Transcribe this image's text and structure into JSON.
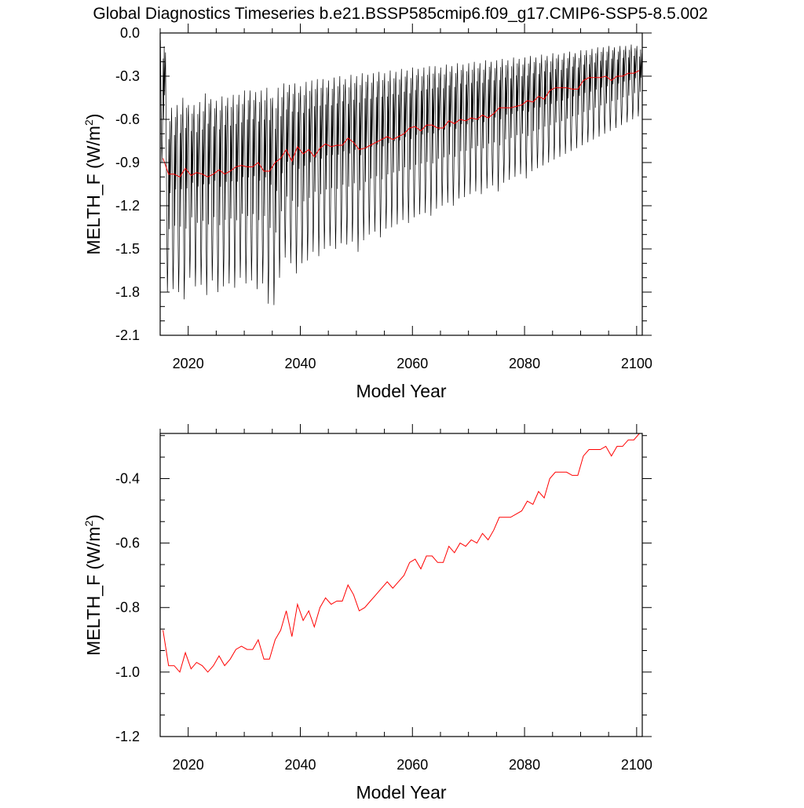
{
  "figure": {
    "title": "Global Diagnostics Timeseries b.e21.BSSP585cmip6.f09_g17.CMIP6-SSP5-8.5.002"
  },
  "chart_data": [
    {
      "type": "line",
      "xlabel": "Model Year",
      "ylabel_main": "MELTH_F (W/m",
      "ylabel_sup": "2",
      "ylabel_close": ")",
      "xlim": [
        2015,
        2101
      ],
      "ylim": [
        -2.1,
        0.0
      ],
      "xticks": [
        2020,
        2040,
        2060,
        2080,
        2100
      ],
      "xtick_labels": [
        "2020",
        "2040",
        "2060",
        "2080",
        "2100"
      ],
      "yticks": [
        0.0,
        -0.3,
        -0.6,
        -0.9,
        -1.2,
        -1.5,
        -1.8,
        -2.1
      ],
      "ytick_labels": [
        "0.0",
        "-0.3",
        "-0.6",
        "-0.9",
        "-1.2",
        "-1.5",
        "-1.8",
        "-2.1"
      ],
      "grid": false,
      "series": [
        {
          "kind": "monthly",
          "color": "#000000",
          "start_year": 2015,
          "months_per_year": 12,
          "annual_max": [
            -0.05,
            -0.55,
            -0.52,
            -0.5,
            -0.45,
            -0.5,
            -0.5,
            -0.48,
            -0.42,
            -0.46,
            -0.47,
            -0.44,
            -0.45,
            -0.43,
            -0.43,
            -0.4,
            -0.4,
            -0.41,
            -0.4,
            -0.38,
            -0.45,
            -0.38,
            -0.35,
            -0.36,
            -0.35,
            -0.37,
            -0.34,
            -0.33,
            -0.32,
            -0.32,
            -0.33,
            -0.31,
            -0.3,
            -0.32,
            -0.29,
            -0.3,
            -0.28,
            -0.29,
            -0.28,
            -0.27,
            -0.28,
            -0.26,
            -0.27,
            -0.25,
            -0.26,
            -0.24,
            -0.25,
            -0.24,
            -0.23,
            -0.23,
            -0.24,
            -0.22,
            -0.23,
            -0.21,
            -0.22,
            -0.21,
            -0.2,
            -0.21,
            -0.19,
            -0.2,
            -0.19,
            -0.18,
            -0.19,
            -0.17,
            -0.18,
            -0.17,
            -0.16,
            -0.17,
            -0.15,
            -0.16,
            -0.14,
            -0.15,
            -0.14,
            -0.13,
            -0.14,
            -0.12,
            -0.12,
            -0.11,
            -0.1,
            -0.1,
            -0.09,
            -0.1,
            -0.09,
            -0.09,
            -0.08,
            -0.09
          ],
          "annual_min": [
            -0.9,
            -1.8,
            -1.78,
            -1.8,
            -1.85,
            -1.7,
            -1.76,
            -1.75,
            -1.82,
            -1.72,
            -1.8,
            -1.76,
            -1.74,
            -1.77,
            -1.7,
            -1.74,
            -1.72,
            -1.78,
            -1.74,
            -1.88,
            -1.89,
            -1.7,
            -1.56,
            -1.6,
            -1.67,
            -1.6,
            -1.58,
            -1.52,
            -1.55,
            -1.5,
            -1.48,
            -1.5,
            -1.46,
            -1.47,
            -1.45,
            -1.52,
            -1.44,
            -1.4,
            -1.38,
            -1.42,
            -1.36,
            -1.35,
            -1.33,
            -1.3,
            -1.32,
            -1.28,
            -1.26,
            -1.25,
            -1.27,
            -1.22,
            -1.2,
            -1.18,
            -1.2,
            -1.15,
            -1.14,
            -1.12,
            -1.1,
            -1.12,
            -1.08,
            -1.06,
            -1.1,
            -1.04,
            -1.02,
            -1.0,
            -0.98,
            -1.01,
            -0.96,
            -0.94,
            -0.92,
            -0.9,
            -0.88,
            -0.86,
            -0.84,
            -0.82,
            -0.8,
            -0.78,
            -0.76,
            -0.74,
            -0.72,
            -0.7,
            -0.68,
            -0.66,
            -0.64,
            -0.62,
            -0.6,
            -0.58
          ]
        },
        {
          "kind": "annual",
          "color": "#ff0000",
          "x": [
            2015.5,
            2016.5,
            2017.5,
            2018.5,
            2019.5,
            2020.5,
            2021.5,
            2022.5,
            2023.5,
            2024.5,
            2025.5,
            2026.5,
            2027.5,
            2028.5,
            2029.5,
            2030.5,
            2031.5,
            2032.5,
            2033.5,
            2034.5,
            2035.5,
            2036.5,
            2037.5,
            2038.5,
            2039.5,
            2040.5,
            2041.5,
            2042.5,
            2043.5,
            2044.5,
            2045.5,
            2046.5,
            2047.5,
            2048.5,
            2049.5,
            2050.5,
            2051.5,
            2052.5,
            2053.5,
            2054.5,
            2055.5,
            2056.5,
            2057.5,
            2058.5,
            2059.5,
            2060.5,
            2061.5,
            2062.5,
            2063.5,
            2064.5,
            2065.5,
            2066.5,
            2067.5,
            2068.5,
            2069.5,
            2070.5,
            2071.5,
            2072.5,
            2073.5,
            2074.5,
            2075.5,
            2076.5,
            2077.5,
            2078.5,
            2079.5,
            2080.5,
            2081.5,
            2082.5,
            2083.5,
            2084.5,
            2085.5,
            2086.5,
            2087.5,
            2088.5,
            2089.5,
            2090.5,
            2091.5,
            2092.5,
            2093.5,
            2094.5,
            2095.5,
            2096.5,
            2097.5,
            2098.5,
            2099.5,
            2100.5
          ],
          "values": [
            -0.87,
            -0.98,
            -0.98,
            -1.0,
            -0.94,
            -0.99,
            -0.97,
            -0.98,
            -1.0,
            -0.98,
            -0.95,
            -0.98,
            -0.96,
            -0.93,
            -0.92,
            -0.93,
            -0.93,
            -0.9,
            -0.96,
            -0.96,
            -0.9,
            -0.87,
            -0.81,
            -0.89,
            -0.79,
            -0.84,
            -0.81,
            -0.86,
            -0.8,
            -0.77,
            -0.79,
            -0.78,
            -0.78,
            -0.73,
            -0.76,
            -0.81,
            -0.8,
            -0.78,
            -0.76,
            -0.74,
            -0.72,
            -0.74,
            -0.72,
            -0.7,
            -0.66,
            -0.65,
            -0.68,
            -0.64,
            -0.64,
            -0.66,
            -0.66,
            -0.61,
            -0.63,
            -0.6,
            -0.61,
            -0.59,
            -0.6,
            -0.57,
            -0.59,
            -0.56,
            -0.52,
            -0.52,
            -0.52,
            -0.51,
            -0.5,
            -0.47,
            -0.48,
            -0.44,
            -0.46,
            -0.4,
            -0.38,
            -0.38,
            -0.38,
            -0.39,
            -0.39,
            -0.33,
            -0.31,
            -0.31,
            -0.31,
            -0.3,
            -0.33,
            -0.3,
            -0.3,
            -0.28,
            -0.28,
            -0.26
          ]
        }
      ]
    },
    {
      "type": "line",
      "xlabel": "Model Year",
      "ylabel_main": "MELTH_F (W/m",
      "ylabel_sup": "2",
      "ylabel_close": ")",
      "xlim": [
        2015,
        2101
      ],
      "ylim": [
        -1.2,
        -0.26
      ],
      "xticks": [
        2020,
        2040,
        2060,
        2080,
        2100
      ],
      "xtick_labels": [
        "2020",
        "2040",
        "2060",
        "2080",
        "2100"
      ],
      "yticks": [
        -0.4,
        -0.6,
        -0.8,
        -1.0,
        -1.2
      ],
      "ytick_labels": [
        "-0.4",
        "-0.6",
        "-0.8",
        "-1.0",
        "-1.2"
      ],
      "grid": false,
      "series": [
        {
          "kind": "annual",
          "color": "#ff0000",
          "x": [
            2015.5,
            2016.5,
            2017.5,
            2018.5,
            2019.5,
            2020.5,
            2021.5,
            2022.5,
            2023.5,
            2024.5,
            2025.5,
            2026.5,
            2027.5,
            2028.5,
            2029.5,
            2030.5,
            2031.5,
            2032.5,
            2033.5,
            2034.5,
            2035.5,
            2036.5,
            2037.5,
            2038.5,
            2039.5,
            2040.5,
            2041.5,
            2042.5,
            2043.5,
            2044.5,
            2045.5,
            2046.5,
            2047.5,
            2048.5,
            2049.5,
            2050.5,
            2051.5,
            2052.5,
            2053.5,
            2054.5,
            2055.5,
            2056.5,
            2057.5,
            2058.5,
            2059.5,
            2060.5,
            2061.5,
            2062.5,
            2063.5,
            2064.5,
            2065.5,
            2066.5,
            2067.5,
            2068.5,
            2069.5,
            2070.5,
            2071.5,
            2072.5,
            2073.5,
            2074.5,
            2075.5,
            2076.5,
            2077.5,
            2078.5,
            2079.5,
            2080.5,
            2081.5,
            2082.5,
            2083.5,
            2084.5,
            2085.5,
            2086.5,
            2087.5,
            2088.5,
            2089.5,
            2090.5,
            2091.5,
            2092.5,
            2093.5,
            2094.5,
            2095.5,
            2096.5,
            2097.5,
            2098.5,
            2099.5,
            2100.5
          ],
          "values": [
            -0.87,
            -0.98,
            -0.98,
            -1.0,
            -0.94,
            -0.99,
            -0.97,
            -0.98,
            -1.0,
            -0.98,
            -0.95,
            -0.98,
            -0.96,
            -0.93,
            -0.92,
            -0.93,
            -0.93,
            -0.9,
            -0.96,
            -0.96,
            -0.9,
            -0.87,
            -0.81,
            -0.89,
            -0.79,
            -0.84,
            -0.81,
            -0.86,
            -0.8,
            -0.77,
            -0.79,
            -0.78,
            -0.78,
            -0.73,
            -0.76,
            -0.81,
            -0.8,
            -0.78,
            -0.76,
            -0.74,
            -0.72,
            -0.74,
            -0.72,
            -0.7,
            -0.66,
            -0.65,
            -0.68,
            -0.64,
            -0.64,
            -0.66,
            -0.66,
            -0.61,
            -0.63,
            -0.6,
            -0.61,
            -0.59,
            -0.6,
            -0.57,
            -0.59,
            -0.56,
            -0.52,
            -0.52,
            -0.52,
            -0.51,
            -0.5,
            -0.47,
            -0.48,
            -0.44,
            -0.46,
            -0.4,
            -0.38,
            -0.38,
            -0.38,
            -0.39,
            -0.39,
            -0.33,
            -0.31,
            -0.31,
            -0.31,
            -0.3,
            -0.33,
            -0.3,
            -0.3,
            -0.28,
            -0.28,
            -0.26
          ]
        }
      ]
    }
  ]
}
